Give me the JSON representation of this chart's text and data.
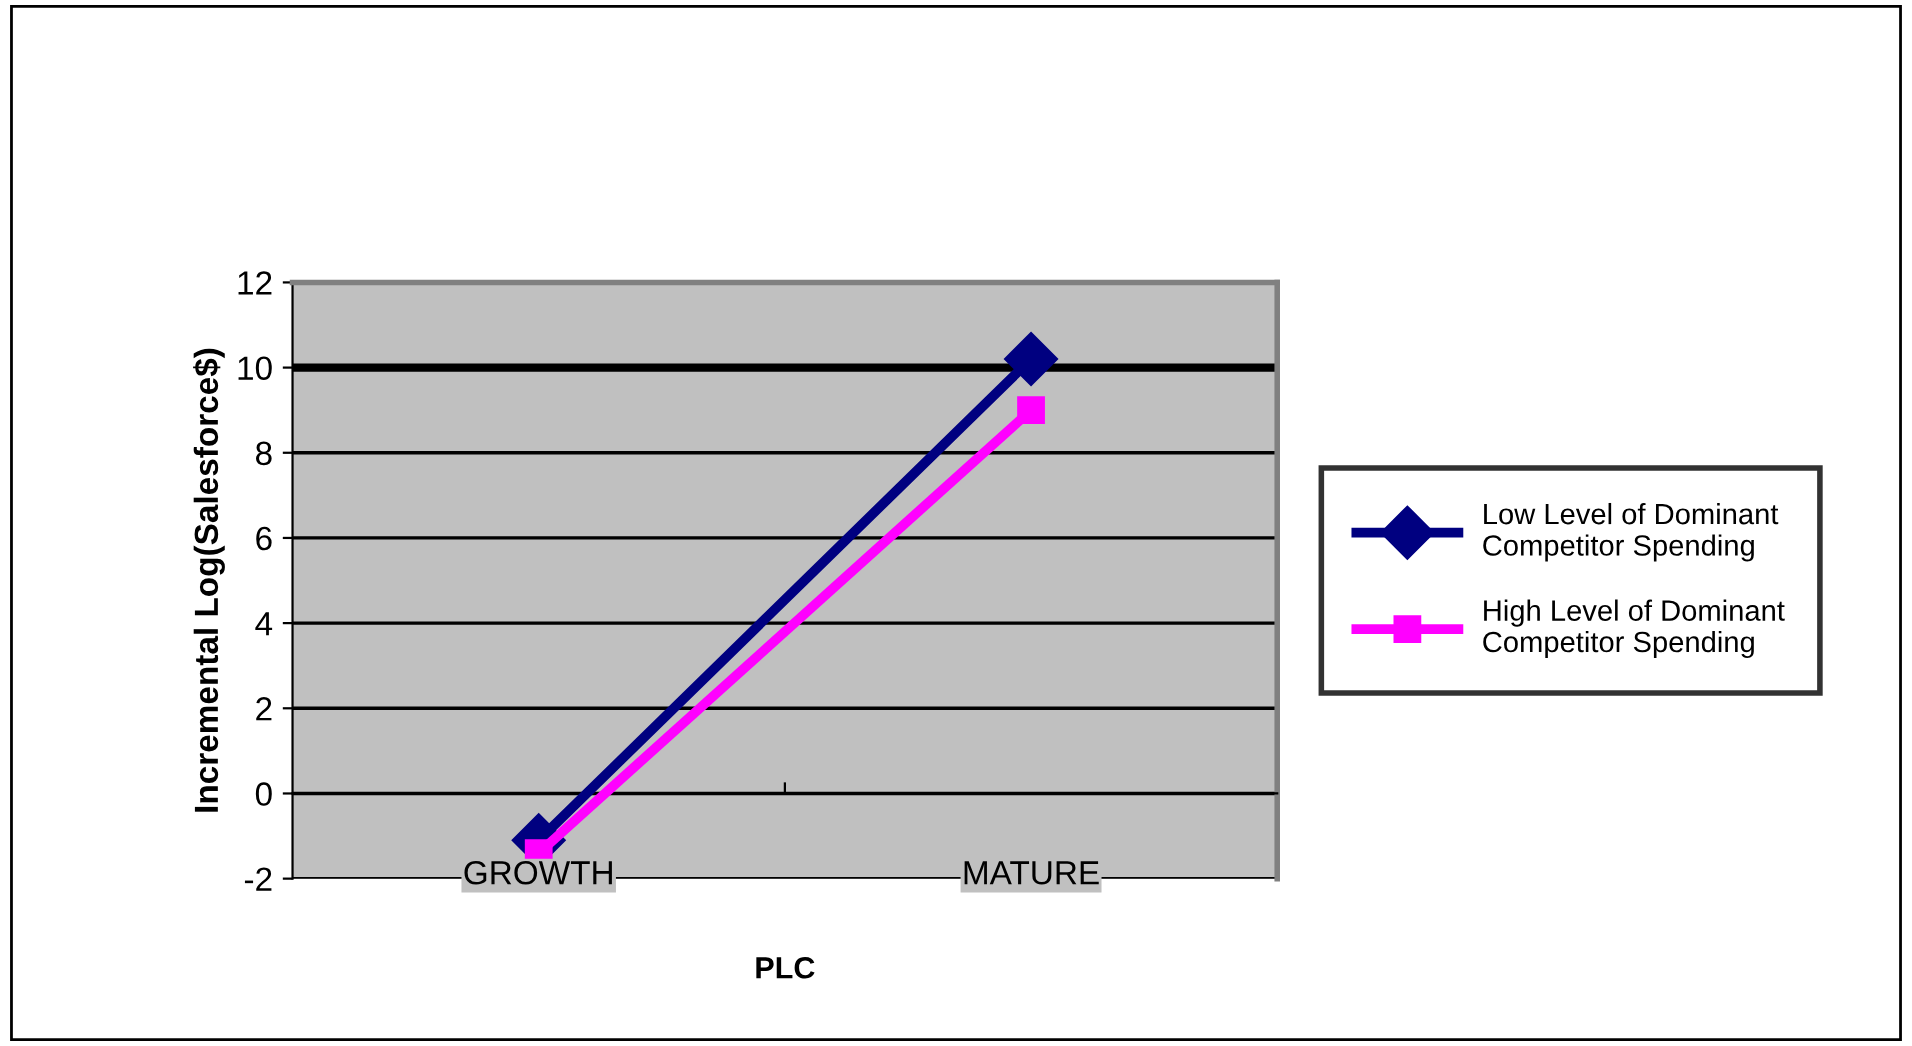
{
  "chart_data": {
    "type": "line",
    "xlabel": "PLC",
    "ylabel": "Incremental Log(Salesforce$)",
    "categories": [
      "GROWTH",
      "MATURE"
    ],
    "series": [
      {
        "name": "Low Level of Dominant Competitor Spending",
        "color": "#000080",
        "values": [
          -1.1,
          10.2
        ],
        "marker": "diamond"
      },
      {
        "name": "High Level of Dominant Competitor Spending",
        "color": "#ff00ff",
        "values": [
          -1.4,
          9.0
        ],
        "marker": "square"
      }
    ],
    "ylim": [
      -2,
      12
    ],
    "yticks": [
      -2,
      0,
      2,
      4,
      6,
      8,
      10,
      12
    ],
    "grid": "y",
    "legend": "right",
    "ref_lines": [
      {
        "axis": "y",
        "value": 10,
        "color": "#000000"
      }
    ]
  }
}
